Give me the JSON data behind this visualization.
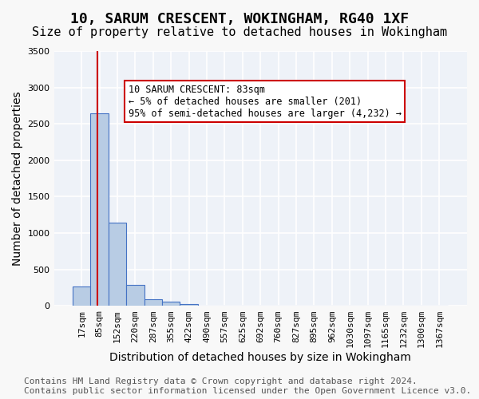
{
  "title": "10, SARUM CRESCENT, WOKINGHAM, RG40 1XF",
  "subtitle": "Size of property relative to detached houses in Wokingham",
  "xlabel": "Distribution of detached houses by size in Wokingham",
  "ylabel": "Number of detached properties",
  "bar_color": "#b8cce4",
  "bar_edge_color": "#4472c4",
  "background_color": "#eef2f8",
  "grid_color": "#ffffff",
  "categories": [
    "17sqm",
    "85sqm",
    "152sqm",
    "220sqm",
    "287sqm",
    "355sqm",
    "422sqm",
    "490sqm",
    "557sqm",
    "625sqm",
    "692sqm",
    "760sqm",
    "827sqm",
    "895sqm",
    "962sqm",
    "1030sqm",
    "1097sqm",
    "1165sqm",
    "1232sqm",
    "1300sqm",
    "1367sqm"
  ],
  "values": [
    270,
    2650,
    1140,
    290,
    90,
    55,
    30,
    0,
    0,
    0,
    0,
    0,
    0,
    0,
    0,
    0,
    0,
    0,
    0,
    0,
    0
  ],
  "ylim": [
    0,
    3500
  ],
  "yticks": [
    0,
    500,
    1000,
    1500,
    2000,
    2500,
    3000,
    3500
  ],
  "property_line_x": 0.9,
  "annotation_text": "10 SARUM CRESCENT: 83sqm\n← 5% of detached houses are smaller (201)\n95% of semi-detached houses are larger (4,232) →",
  "annotation_box_color": "#ffffff",
  "annotation_border_color": "#cc0000",
  "footer_text": "Contains HM Land Registry data © Crown copyright and database right 2024.\nContains public sector information licensed under the Open Government Licence v3.0.",
  "title_fontsize": 13,
  "subtitle_fontsize": 11,
  "xlabel_fontsize": 10,
  "ylabel_fontsize": 10,
  "tick_fontsize": 8,
  "footer_fontsize": 8
}
